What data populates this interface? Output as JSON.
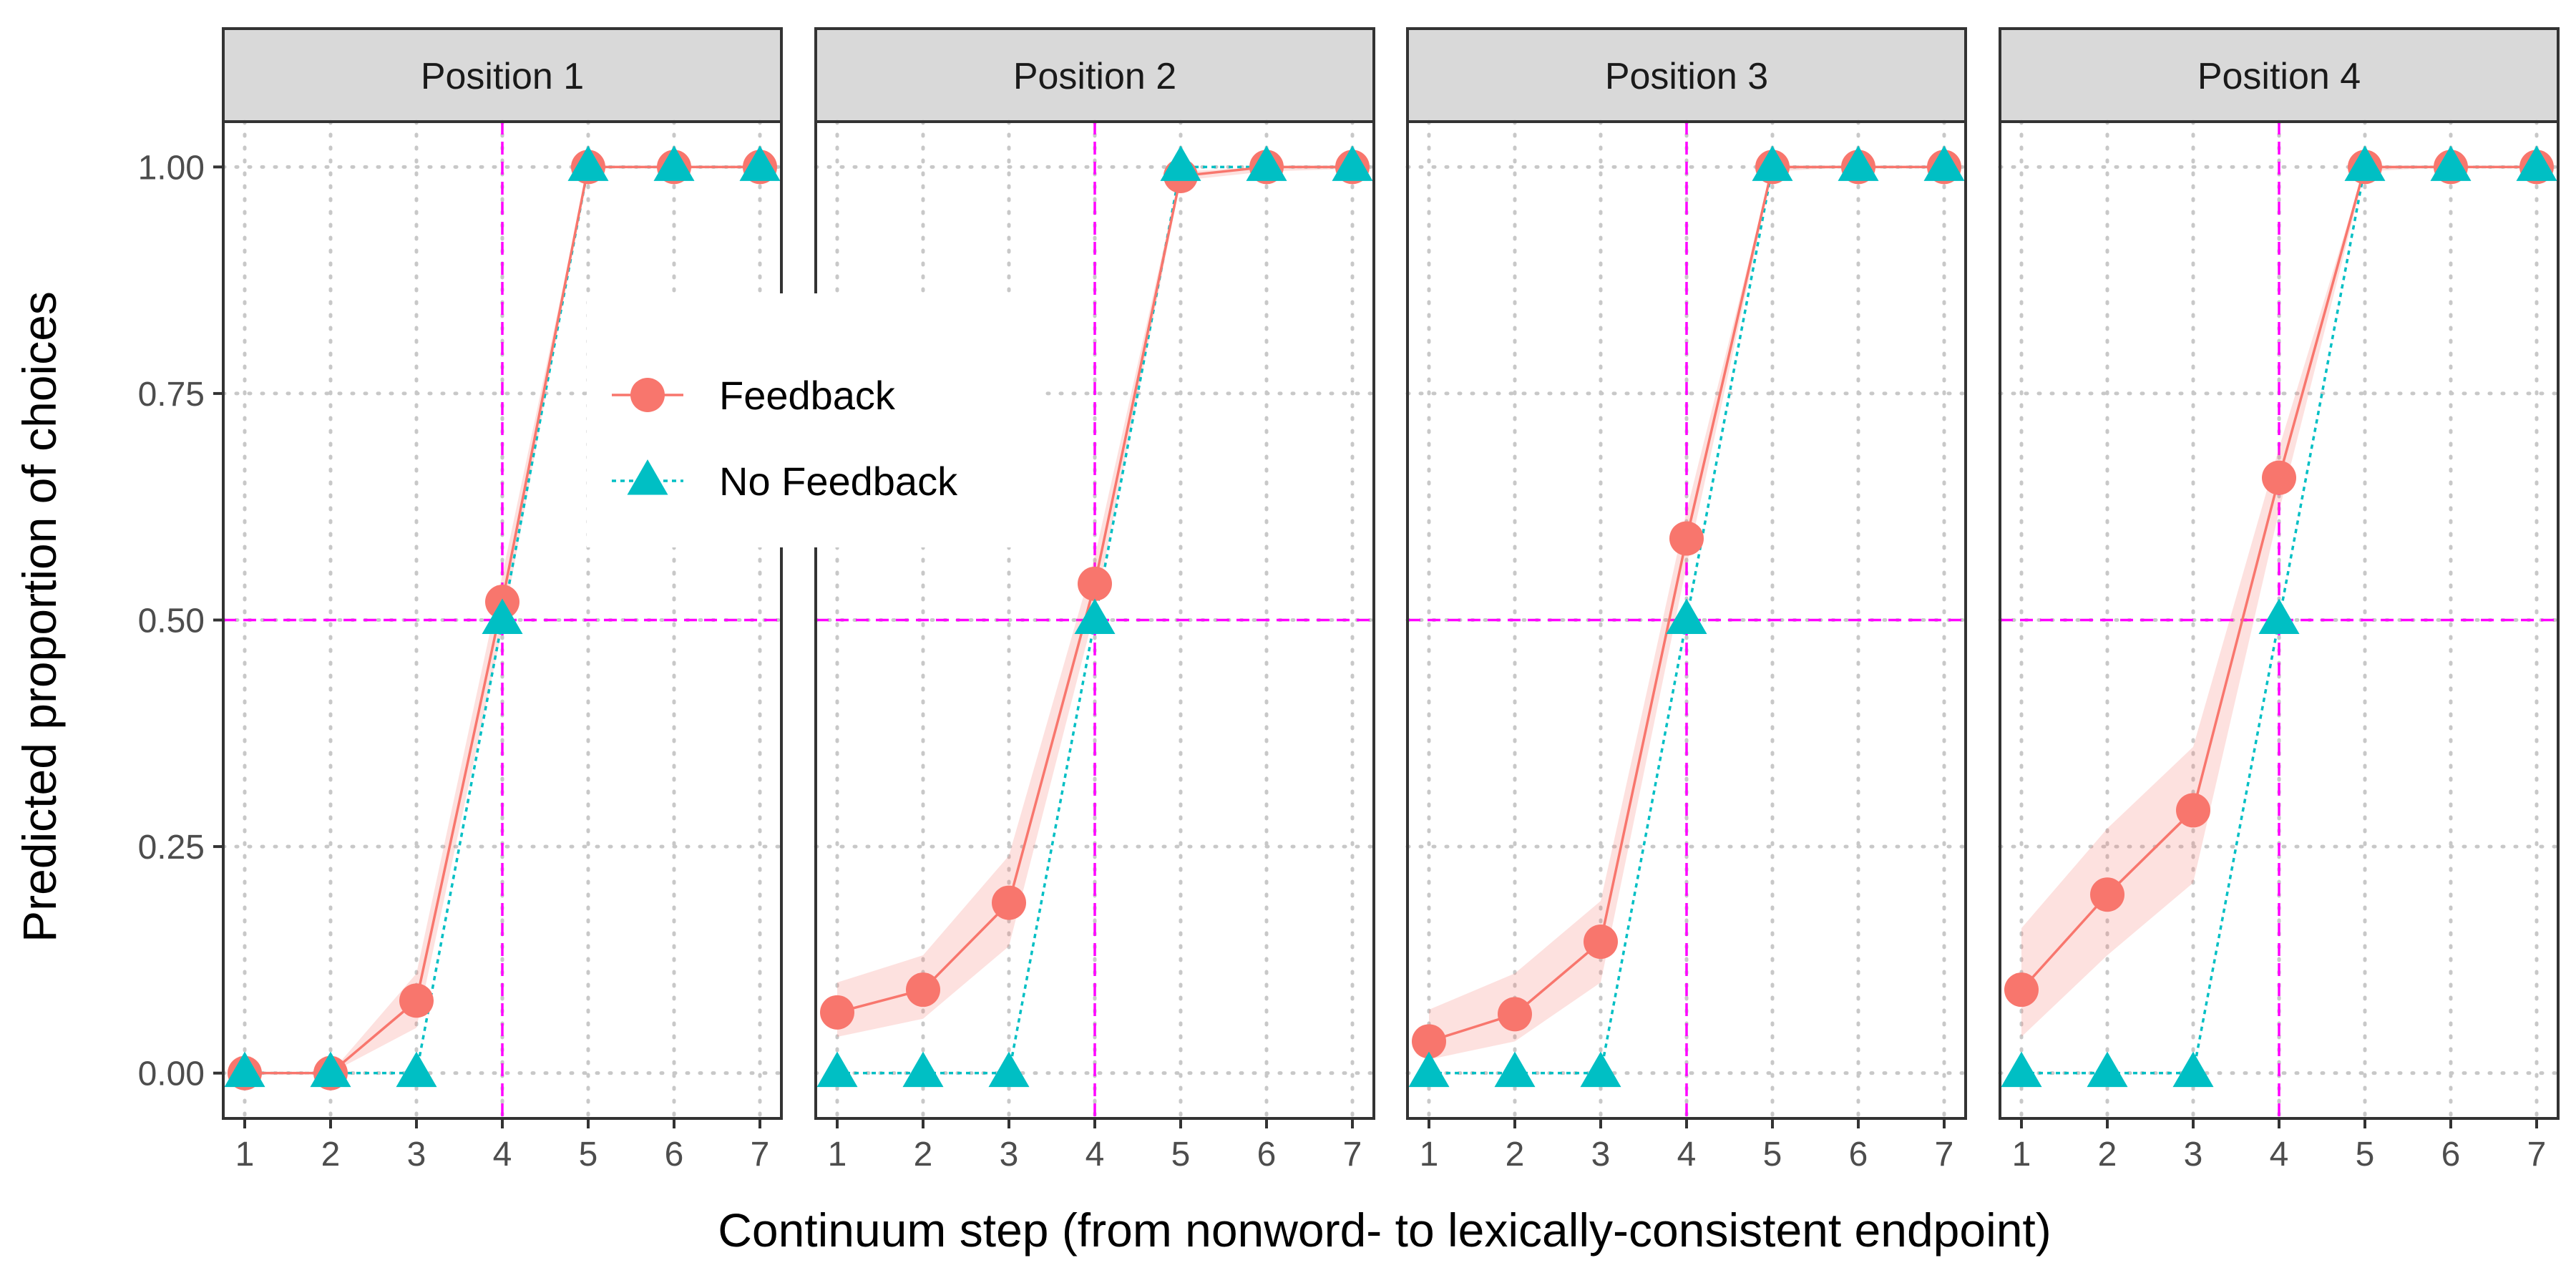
{
  "chart_data": {
    "type": "line",
    "xlabel": "Continuum step (from nonword- to lexically-consistent endpoint)",
    "ylabel": "Predicted proportion of choices",
    "xlim": [
      0.75,
      7.25
    ],
    "ylim": [
      -0.05,
      1.05
    ],
    "x_ticks": [
      1,
      2,
      3,
      4,
      5,
      6,
      7
    ],
    "y_ticks": [
      0.0,
      0.25,
      0.5,
      0.75,
      1.0
    ],
    "y_tick_labels": [
      "0.00",
      "0.25",
      "0.50",
      "0.75",
      "1.00"
    ],
    "reference_lines": {
      "x": 4,
      "y": 0.5,
      "color": "#FF00FF",
      "style": "dashed"
    },
    "grid": "dotted",
    "legend": {
      "placement": "upper-left of panel 2, over panel boundary",
      "entries": [
        "Feedback",
        "No Feedback"
      ]
    },
    "colors": {
      "Feedback": "#F8766D",
      "Feedback_ribbon": "#F8766D",
      "No Feedback": "#00BFC4"
    },
    "markers": {
      "Feedback": "circle",
      "No Feedback": "triangle"
    },
    "line_styles": {
      "Feedback": "solid",
      "No Feedback": "dotted"
    },
    "panels": [
      {
        "title": "Position 1",
        "x": [
          1,
          2,
          3,
          4,
          5,
          6,
          7
        ],
        "series": [
          {
            "name": "Feedback",
            "values": [
              0.0,
              0.0,
              0.08,
              0.52,
              1.0,
              1.0,
              1.0
            ],
            "lower": [
              0.0,
              0.0,
              0.05,
              0.49,
              1.0,
              1.0,
              1.0
            ],
            "upper": [
              0.0,
              0.0,
              0.11,
              0.55,
              1.0,
              1.0,
              1.0
            ]
          },
          {
            "name": "No Feedback",
            "values": [
              0.0,
              0.0,
              0.0,
              0.5,
              1.0,
              1.0,
              1.0
            ]
          }
        ]
      },
      {
        "title": "Position 2",
        "x": [
          1,
          2,
          3,
          4,
          5,
          6,
          7
        ],
        "series": [
          {
            "name": "Feedback",
            "values": [
              0.067,
              0.092,
              0.188,
              0.54,
              0.99,
              1.0,
              1.0
            ],
            "lower": [
              0.04,
              0.06,
              0.14,
              0.51,
              0.985,
              0.995,
              0.998
            ],
            "upper": [
              0.1,
              0.13,
              0.24,
              0.57,
              0.995,
              1.0,
              1.0
            ]
          },
          {
            "name": "No Feedback",
            "values": [
              0.0,
              0.0,
              0.0,
              0.5,
              1.0,
              1.0,
              1.0
            ]
          }
        ]
      },
      {
        "title": "Position 3",
        "x": [
          1,
          2,
          3,
          4,
          5,
          6,
          7
        ],
        "series": [
          {
            "name": "Feedback",
            "values": [
              0.035,
              0.065,
              0.145,
              0.59,
              1.0,
              1.0,
              1.0
            ],
            "lower": [
              0.015,
              0.035,
              0.1,
              0.56,
              0.995,
              1.0,
              1.0
            ],
            "upper": [
              0.07,
              0.11,
              0.19,
              0.62,
              1.0,
              1.0,
              1.0
            ]
          },
          {
            "name": "No Feedback",
            "values": [
              0.0,
              0.0,
              0.0,
              0.5,
              1.0,
              1.0,
              1.0
            ]
          }
        ]
      },
      {
        "title": "Position 4",
        "x": [
          1,
          2,
          3,
          4,
          5,
          6,
          7
        ],
        "series": [
          {
            "name": "Feedback",
            "values": [
              0.092,
              0.197,
              0.29,
              0.657,
              1.0,
              1.0,
              1.0
            ],
            "lower": [
              0.04,
              0.13,
              0.21,
              0.62,
              0.995,
              1.0,
              1.0
            ],
            "upper": [
              0.16,
              0.27,
              0.36,
              0.69,
              1.0,
              1.0,
              1.0
            ]
          },
          {
            "name": "No Feedback",
            "values": [
              0.0,
              0.0,
              0.0,
              0.5,
              1.0,
              1.0,
              1.0
            ]
          }
        ]
      }
    ]
  }
}
